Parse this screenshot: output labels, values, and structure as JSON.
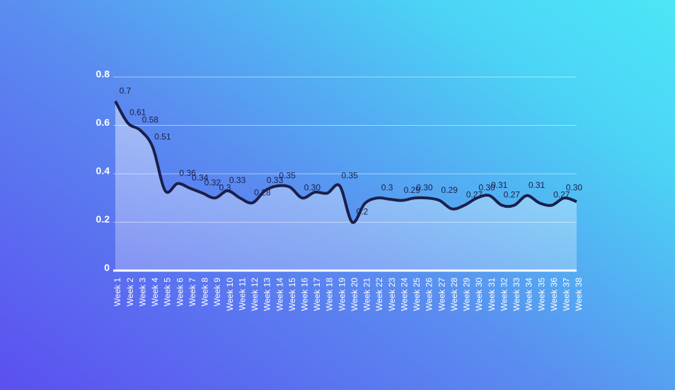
{
  "chart_data": {
    "type": "line",
    "categories": [
      "Week 1",
      "Week 2",
      "Week 3",
      "Week 4",
      "Week 5",
      "Week 6",
      "Week 7",
      "Week 8",
      "Week 9",
      "Week 10",
      "Week 11",
      "Week 12",
      "Week 13",
      "Week 14",
      "Week 15",
      "Week 16",
      "Week 17",
      "Week 18",
      "Week 19",
      "Week 20",
      "Week 21",
      "Week 22",
      "Week 23",
      "Week 24",
      "Week 25",
      "Week 26",
      "Week 27",
      "Week 28",
      "Week 29",
      "Week 30",
      "Week 31",
      "Week 32",
      "Week 33",
      "Week 34",
      "Week 35",
      "Week 36",
      "Week 37",
      "Week 38"
    ],
    "values": [
      0.7,
      0.61,
      0.58,
      0.51,
      0.33,
      0.36,
      0.34,
      0.32,
      0.3,
      0.33,
      0.3,
      0.28,
      0.33,
      0.35,
      0.345,
      0.3,
      0.324,
      0.32,
      0.35,
      0.2,
      0.277,
      0.3,
      0.295,
      0.29,
      0.3,
      0.3,
      0.29,
      0.255,
      0.27,
      0.3,
      0.31,
      0.27,
      0.27,
      0.31,
      0.28,
      0.27,
      0.3,
      0.285
    ],
    "value_labels": [
      "0.7",
      "0.61",
      "0.58",
      "0.51",
      null,
      "0.36",
      "0.34",
      "0.32",
      "0.3",
      "0.33",
      null,
      "0.28",
      "0.33",
      "0.35",
      null,
      "0.30",
      null,
      null,
      "0.35",
      "0.2",
      null,
      "0.3",
      null,
      "0.29",
      "0.30",
      null,
      "0.29",
      null,
      "0.27",
      "0.30",
      "0.31",
      "0.27",
      null,
      "0.31",
      null,
      "0.27",
      "0.30",
      null
    ],
    "color": "#1b1f4b",
    "ylim": [
      0,
      0.8
    ],
    "yticks": [
      0,
      0.2,
      0.4,
      0.6,
      0.8
    ],
    "grid": true
  }
}
